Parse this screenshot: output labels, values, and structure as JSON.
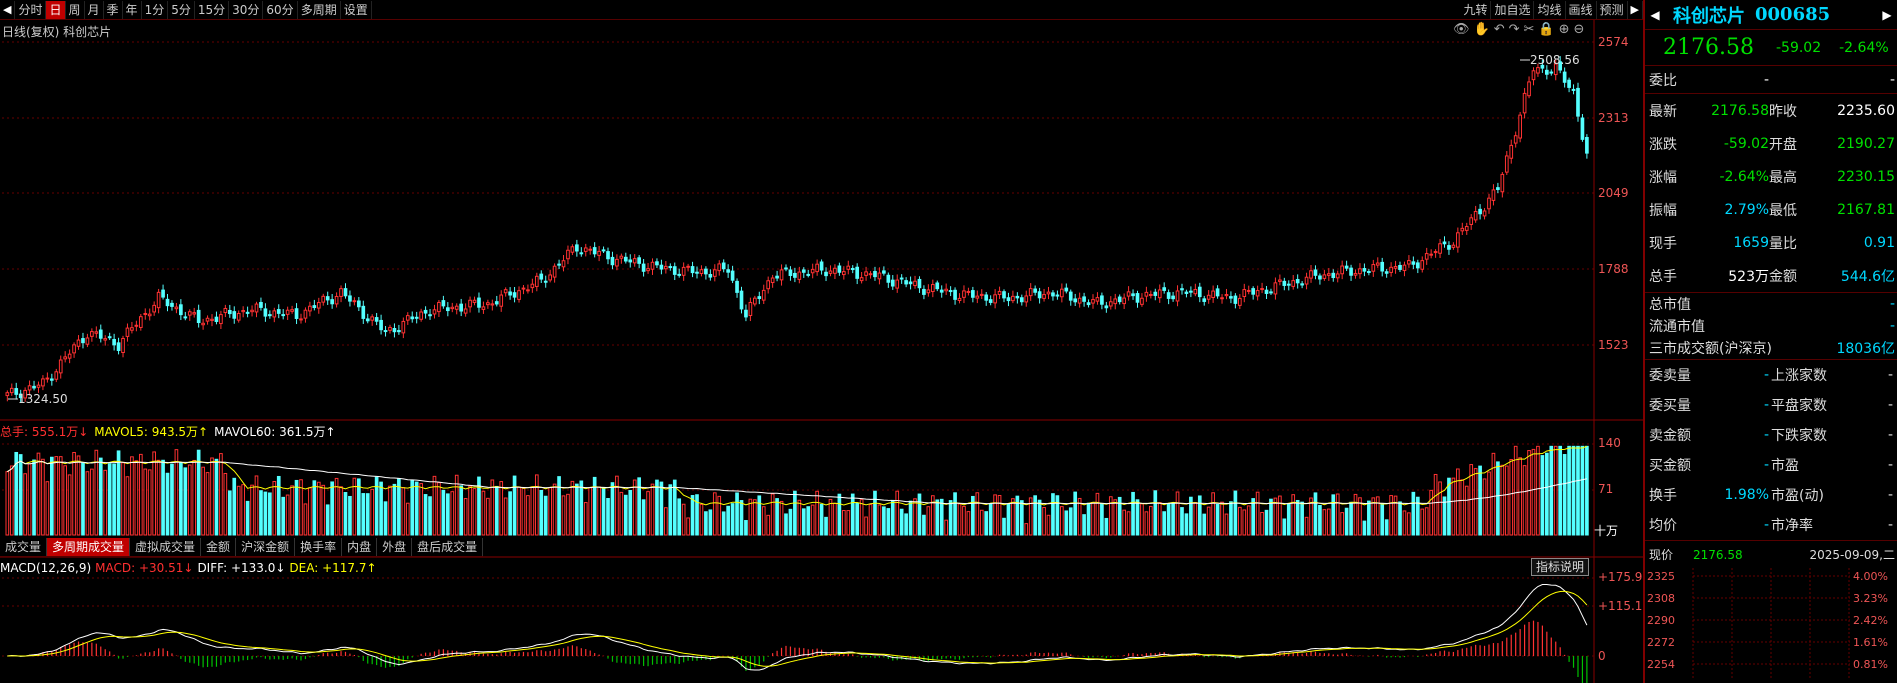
{
  "toolbar": {
    "periods": [
      "分时",
      "日",
      "周",
      "月",
      "季",
      "年",
      "1分",
      "5分",
      "15分",
      "30分",
      "60分",
      "多周期",
      "设置"
    ],
    "active": "日",
    "right": [
      "九转",
      "加自选",
      "均线",
      "画线",
      "预测"
    ]
  },
  "subtitle": "日线(复权) 科创芯片",
  "price_axis": [
    "2574",
    "2313",
    "2049",
    "1788",
    "1523"
  ],
  "annotations": {
    "high": "2508.56",
    "low": "1324.50"
  },
  "volume": {
    "legend": {
      "total": "总手: 555.1万↓",
      "ma5": "MAVOL5: 943.5万↑",
      "ma60": "MAVOL60: 361.5万↑"
    },
    "axis": [
      "140",
      "71",
      "十万"
    ],
    "tabs": [
      "成交量",
      "多周期成交量",
      "虚拟成交量",
      "金额",
      "沪深金额",
      "换手率",
      "内盘",
      "外盘",
      "盘后成交量"
    ],
    "active_tab": "多周期成交量"
  },
  "macd": {
    "legend": {
      "name": "MACD(12,26,9)",
      "macd": "MACD: +30.51↓",
      "diff": "DIFF: +133.0↓",
      "dea": "DEA: +117.7↑"
    },
    "axis": [
      "+175.9",
      "+115.1",
      "0"
    ],
    "indicator_button": "指标说明"
  },
  "panel": {
    "name": "科创芯片",
    "code": "000685",
    "price": "2176.58",
    "change": "-59.02",
    "pct": "-2.64%",
    "rows": [
      {
        "k1": "委比",
        "v1": "-",
        "k2": "",
        "v2": "-"
      },
      {
        "k1": "最新",
        "v1": "2176.58",
        "k2": "昨收",
        "v2": "2235.60"
      },
      {
        "k1": "涨跌",
        "v1": "-59.02",
        "k2": "开盘",
        "v2": "2190.27"
      },
      {
        "k1": "涨幅",
        "v1": "-2.64%",
        "k2": "最高",
        "v2": "2230.15"
      },
      {
        "k1": "振幅",
        "v1": "2.79%",
        "k2": "最低",
        "v2": "2167.81"
      },
      {
        "k1": "现手",
        "v1": "1659",
        "k2": "量比",
        "v2": "0.91"
      },
      {
        "k1": "总手",
        "v1": "523万",
        "k2": "金额",
        "v2": "544.6亿"
      }
    ],
    "cap": [
      {
        "k": "总市值",
        "v": "-"
      },
      {
        "k": "流通市值",
        "v": "-"
      },
      {
        "k": "三市成交额(沪深京)",
        "v": "18036亿"
      }
    ],
    "grid": [
      {
        "k1": "委卖量",
        "v1": "-",
        "k2": "上涨家数",
        "v2": "-"
      },
      {
        "k1": "委买量",
        "v1": "-",
        "k2": "平盘家数",
        "v2": "-"
      },
      {
        "k1": "卖金额",
        "v1": "-",
        "k2": "下跌家数",
        "v2": "-"
      },
      {
        "k1": "买金额",
        "v1": "-",
        "k2": "市盈",
        "v2": "-"
      },
      {
        "k1": "换手",
        "v1": "1.98%",
        "k2": "市盈(动)",
        "v2": "-"
      },
      {
        "k1": "均价",
        "v1": "-",
        "k2": "市净率",
        "v2": "-"
      }
    ],
    "mini": {
      "label": "现价",
      "price": "2176.58",
      "date": "2025-09-09,二",
      "left_axis": [
        "2325",
        "2308",
        "2290",
        "2272",
        "2254"
      ],
      "right_axis": [
        "4.00%",
        "3.23%",
        "2.42%",
        "1.61%",
        "0.81%"
      ]
    }
  },
  "colors": {
    "up": "#ff3232",
    "down": "#54ffff",
    "ma5": "#ffff00",
    "ma60": "#ffffff"
  }
}
